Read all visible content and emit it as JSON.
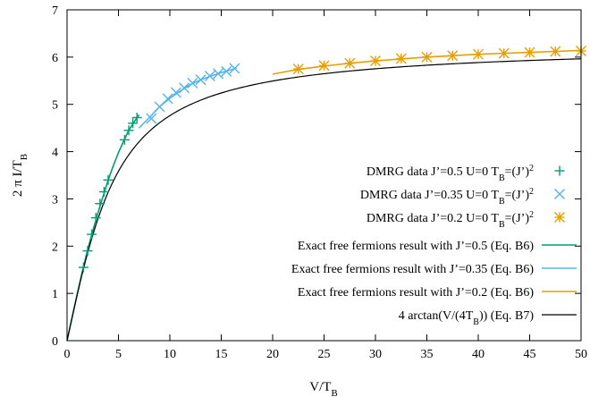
{
  "chart_data": {
    "type": "scatter",
    "xlabel": "V/T",
    "xlabel_sub": "B",
    "ylabel": "2 π I/T",
    "ylabel_sub": "B",
    "xlim": [
      0,
      50
    ],
    "ylim": [
      0,
      7
    ],
    "x_ticks": [
      0,
      5,
      10,
      15,
      20,
      25,
      30,
      35,
      40,
      45,
      50
    ],
    "y_ticks": [
      0,
      1,
      2,
      3,
      4,
      5,
      6,
      7
    ],
    "grid": false,
    "legend_position": "bottom-right",
    "series": [
      {
        "name": "DMRG data J’=0.5 U=0 T",
        "legend_tail": "=(J’)",
        "legend_exp": "2",
        "kind": "points",
        "marker": "plus",
        "color": "#009e73",
        "points": [
          [
            1.6,
            1.55
          ],
          [
            2.0,
            1.9
          ],
          [
            2.4,
            2.25
          ],
          [
            2.8,
            2.6
          ],
          [
            3.2,
            2.9
          ],
          [
            3.6,
            3.15
          ],
          [
            4.0,
            3.4
          ],
          [
            5.6,
            4.25
          ],
          [
            6.0,
            4.45
          ],
          [
            6.4,
            4.6
          ],
          [
            6.8,
            4.72
          ]
        ]
      },
      {
        "name": "DMRG data J’=0.35 U=0 T",
        "legend_tail": "=(J’)",
        "legend_exp": "2",
        "kind": "points",
        "marker": "cross",
        "color": "#56b4e9",
        "points": [
          [
            8.2,
            4.7
          ],
          [
            9.0,
            4.95
          ],
          [
            9.8,
            5.12
          ],
          [
            10.6,
            5.25
          ],
          [
            11.4,
            5.35
          ],
          [
            12.2,
            5.45
          ],
          [
            13.0,
            5.52
          ],
          [
            13.9,
            5.6
          ],
          [
            14.7,
            5.65
          ],
          [
            15.5,
            5.7
          ],
          [
            16.3,
            5.76
          ]
        ]
      },
      {
        "name": "DMRG data J’=0.2 U=0 T",
        "legend_tail": "=(J’)",
        "legend_exp": "2",
        "kind": "points",
        "marker": "star",
        "color": "#e69f00",
        "points": [
          [
            22.5,
            5.75
          ],
          [
            25.0,
            5.82
          ],
          [
            27.5,
            5.87
          ],
          [
            30.0,
            5.92
          ],
          [
            32.5,
            5.97
          ],
          [
            35.0,
            6.0
          ],
          [
            37.5,
            6.03
          ],
          [
            40.0,
            6.06
          ],
          [
            42.5,
            6.08
          ],
          [
            45.0,
            6.1
          ],
          [
            47.5,
            6.12
          ],
          [
            50.0,
            6.13
          ]
        ]
      },
      {
        "name": "Exact free fermions result with J’=0.5 (Eq. B6)",
        "kind": "line",
        "color": "#009e73",
        "points": [
          [
            0,
            0
          ],
          [
            0.5,
            0.5
          ],
          [
            1.0,
            1.0
          ],
          [
            1.5,
            1.48
          ],
          [
            2.0,
            1.92
          ],
          [
            2.5,
            2.32
          ],
          [
            3.0,
            2.7
          ],
          [
            3.5,
            3.05
          ],
          [
            4.0,
            3.4
          ],
          [
            4.5,
            3.7
          ],
          [
            5.0,
            3.98
          ],
          [
            5.5,
            4.22
          ],
          [
            6.0,
            4.45
          ],
          [
            6.5,
            4.62
          ],
          [
            7.0,
            4.78
          ]
        ]
      },
      {
        "name": "Exact free fermions result with J’=0.35 (Eq. B6)",
        "kind": "line",
        "color": "#56b4e9",
        "points": [
          [
            7.0,
            4.5
          ],
          [
            8.0,
            4.72
          ],
          [
            9.0,
            4.95
          ],
          [
            10.0,
            5.13
          ],
          [
            11.0,
            5.28
          ],
          [
            12.0,
            5.42
          ],
          [
            13.0,
            5.52
          ],
          [
            14.0,
            5.6
          ],
          [
            15.0,
            5.67
          ],
          [
            16.5,
            5.77
          ]
        ]
      },
      {
        "name": "Exact free fermions result with J’=0.2 (Eq. B6)",
        "kind": "line",
        "color": "#e69f00",
        "points": [
          [
            20.0,
            5.64
          ],
          [
            22.5,
            5.74
          ],
          [
            25.0,
            5.81
          ],
          [
            27.5,
            5.87
          ],
          [
            30.0,
            5.92
          ],
          [
            32.5,
            5.96
          ],
          [
            35.0,
            6.0
          ],
          [
            37.5,
            6.03
          ],
          [
            40.0,
            6.06
          ],
          [
            42.5,
            6.08
          ],
          [
            45.0,
            6.1
          ],
          [
            47.5,
            6.12
          ],
          [
            50.0,
            6.14
          ]
        ]
      },
      {
        "name": "4 arctan(V/(4T",
        "legend_tail": ")) (Eq. B7)",
        "legend_sub": "B",
        "kind": "function",
        "function": "4*atan(x/4)",
        "color": "#000000"
      }
    ]
  }
}
